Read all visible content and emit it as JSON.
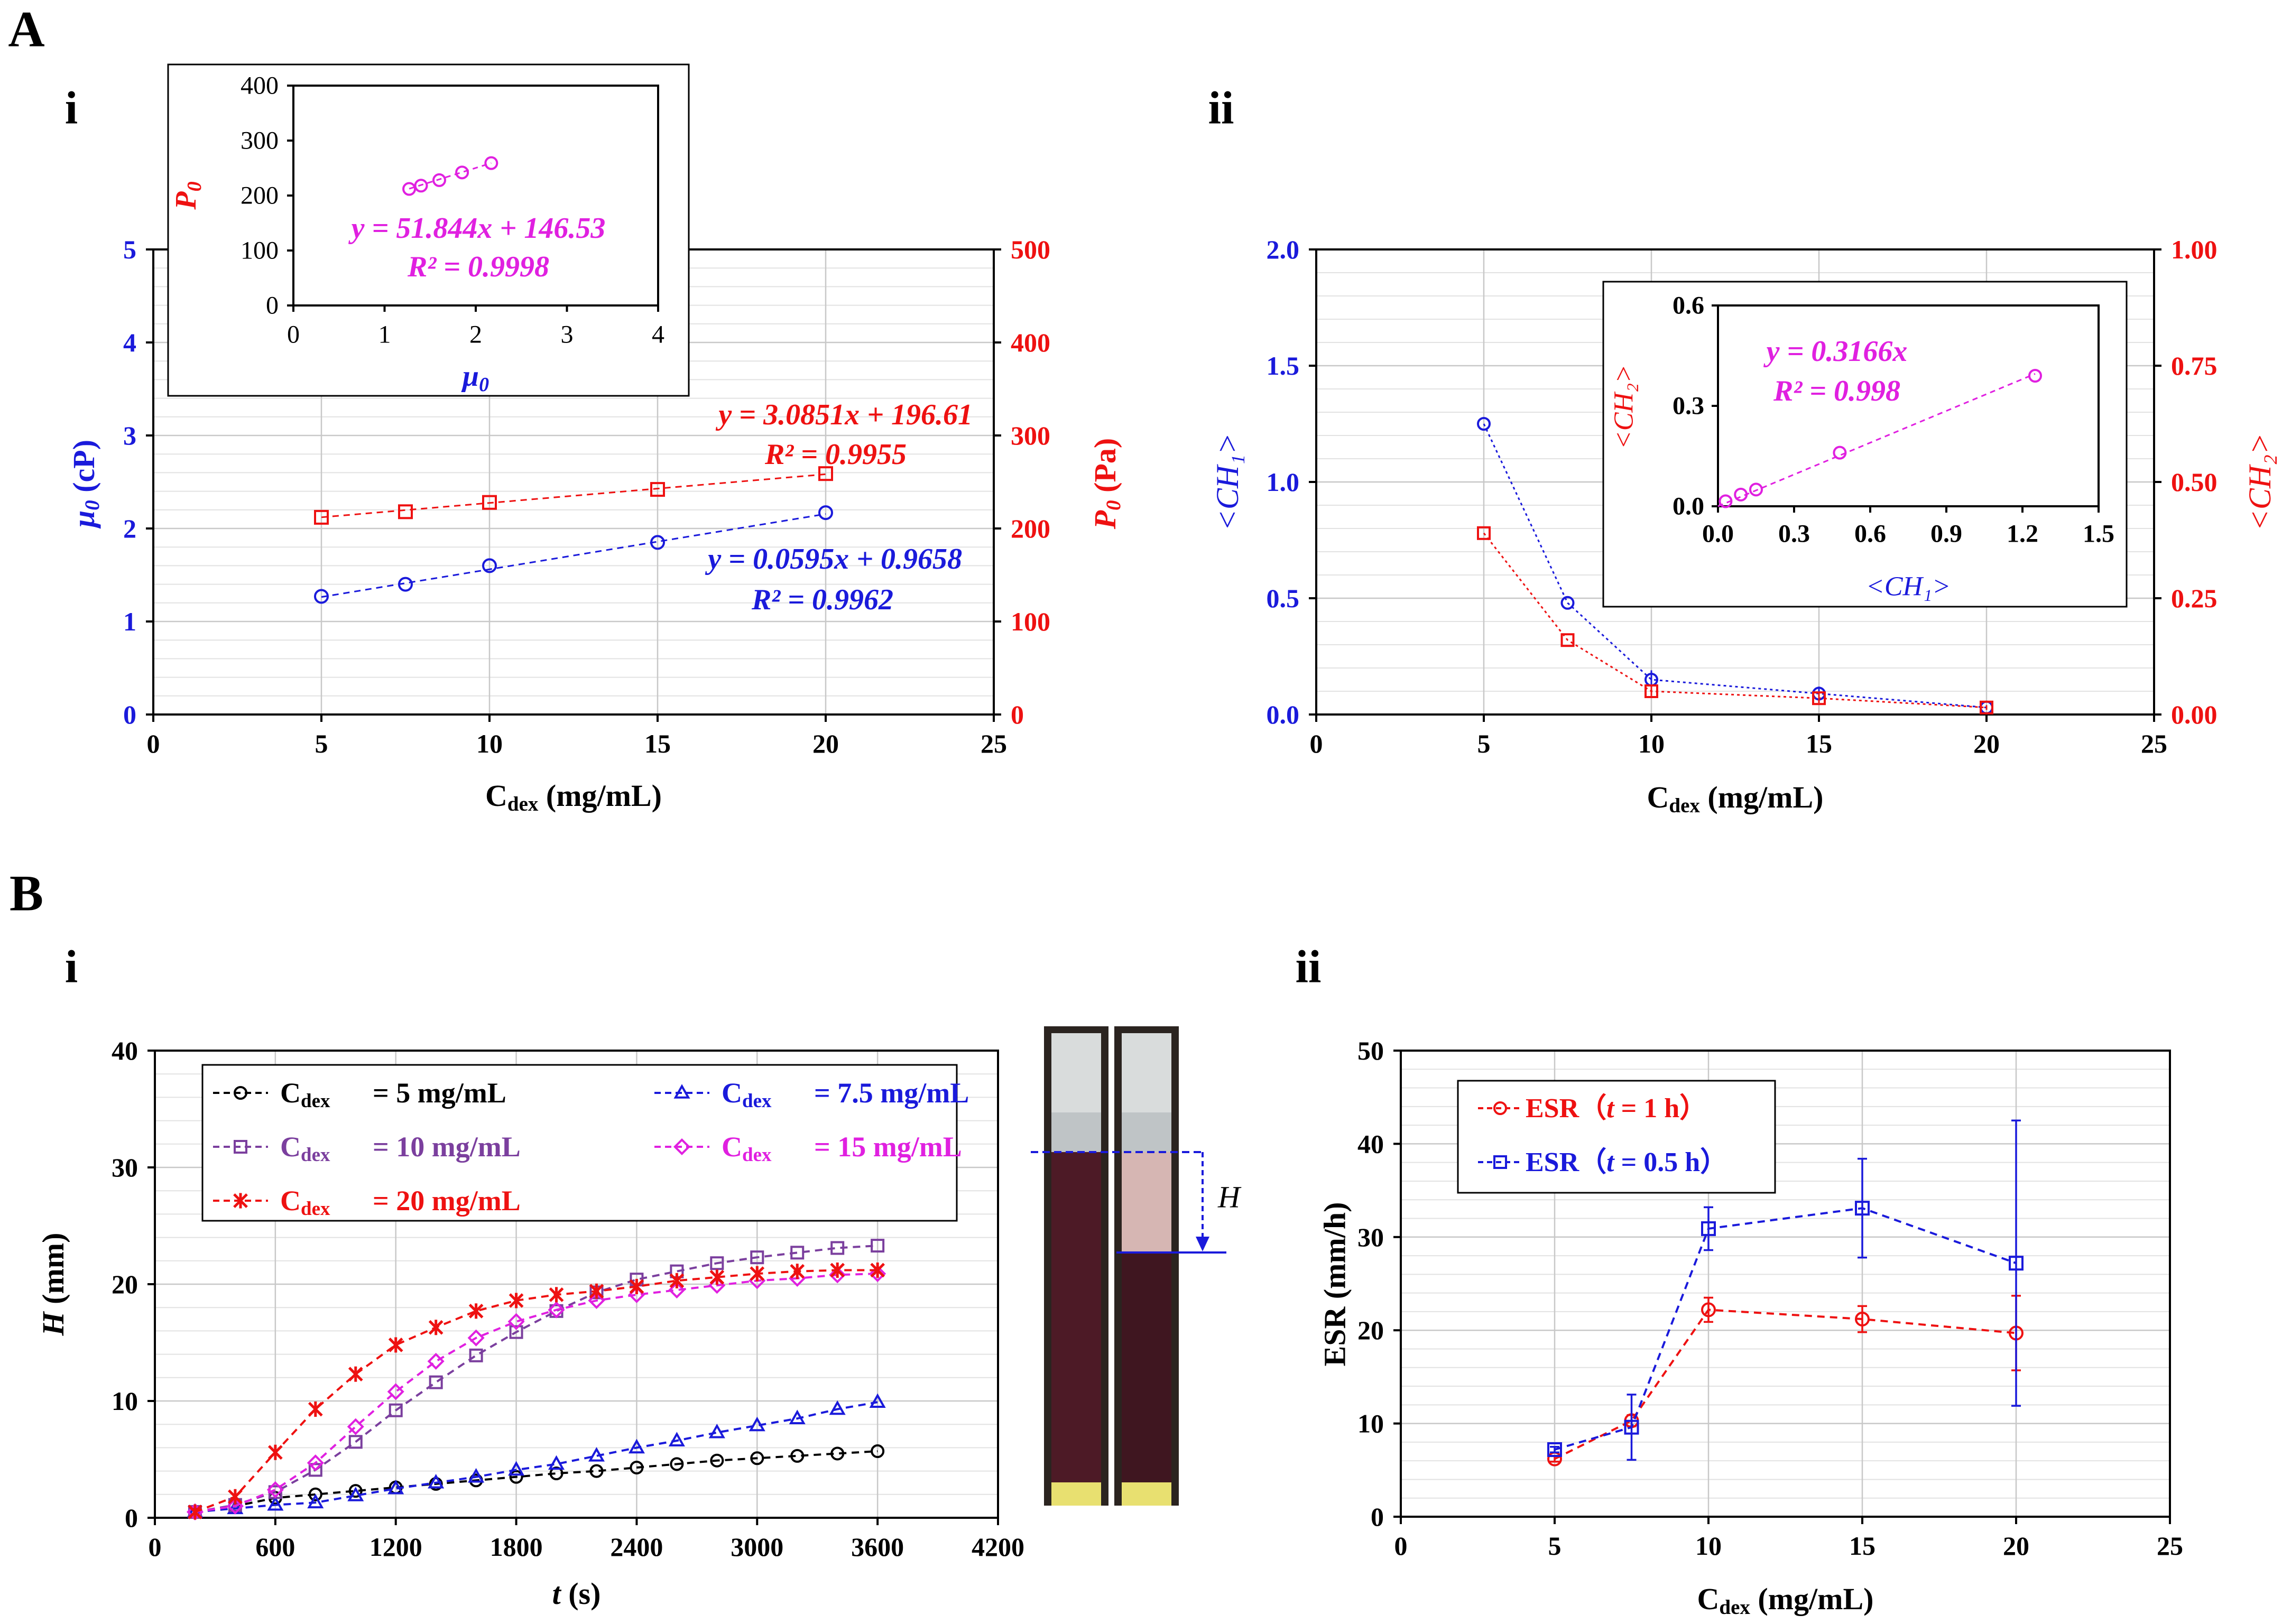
{
  "panel_labels": {
    "A": "A",
    "B": "B",
    "Ai": "i",
    "Aii": "ii",
    "Bi": "i",
    "Bii": "ii"
  },
  "colors": {
    "blue": "#1a1adb",
    "red": "#ee1111",
    "magenta": "#e020e0",
    "purple": "#7b3f9e",
    "black": "#000000",
    "grid": "#c8c8c8"
  },
  "chart_data": [
    {
      "id": "Ai",
      "type": "scatter",
      "xlabel_main": "C",
      "xlabel_sub": "dex",
      "xlabel_unit": " (mg/mL)",
      "ylabel_left_sym": "μ",
      "ylabel_left_sub": "0",
      "ylabel_left_unit": " (cP)",
      "ylabel_right_sym": "P",
      "ylabel_right_sub": "0",
      "ylabel_right_unit": " (Pa)",
      "xlim": [
        0,
        25
      ],
      "xticks": [
        0,
        5,
        10,
        15,
        20,
        25
      ],
      "ylim_left": [
        0,
        5
      ],
      "yticks_left": [
        0,
        1,
        2,
        3,
        4,
        5
      ],
      "ylim_right": [
        0,
        500
      ],
      "yticks_right": [
        0,
        100,
        200,
        300,
        400,
        500
      ],
      "series": [
        {
          "name": "mu0",
          "axis": "left",
          "marker": "circle",
          "color": "#1a1adb",
          "x": [
            5,
            7.5,
            10,
            15,
            20
          ],
          "y": [
            1.27,
            1.4,
            1.6,
            1.85,
            2.17
          ],
          "fit": {
            "slope": 0.0595,
            "intercept": 0.9658
          }
        },
        {
          "name": "P0",
          "axis": "right",
          "marker": "square",
          "color": "#ee1111",
          "x": [
            5,
            7.5,
            10,
            15,
            20
          ],
          "y": [
            212,
            218,
            228,
            242,
            259
          ],
          "fit": {
            "slope": 3.0851,
            "intercept": 196.61
          }
        }
      ],
      "annotations": {
        "P0_eq": "y = 3.0851x + 196.61",
        "P0_r2": "R² = 0.9955",
        "mu0_eq": "y = 0.0595x + 0.9658",
        "mu0_r2": "R² = 0.9962"
      },
      "inset": {
        "type": "scatter",
        "xlabel_sym": "μ",
        "xlabel_sub": "0",
        "ylabel_sym": "P",
        "ylabel_sub": "0",
        "xlim": [
          0,
          4
        ],
        "xticks": [
          0,
          1,
          2,
          3,
          4
        ],
        "ylim": [
          0,
          400
        ],
        "yticks": [
          0,
          100,
          200,
          300,
          400
        ],
        "x": [
          1.27,
          1.4,
          1.6,
          1.85,
          2.17
        ],
        "y": [
          212,
          218,
          228,
          242,
          259
        ],
        "fit": {
          "slope": 51.844,
          "intercept": 146.53
        },
        "eq": "y = 51.844x + 146.53",
        "r2": "R² = 0.9998"
      }
    },
    {
      "id": "Aii",
      "type": "line",
      "xlabel_main": "C",
      "xlabel_sub": "dex",
      "xlabel_unit": " (mg/mL)",
      "ylabel_left": "<CH₁>",
      "ylabel_right": "<CH₂>",
      "xlim": [
        0,
        25
      ],
      "xticks": [
        0,
        5,
        10,
        15,
        20,
        25
      ],
      "ylim_left": [
        0,
        2
      ],
      "yticks_left": [
        "0.0",
        "0.5",
        "1.0",
        "1.5",
        "2.0"
      ],
      "ylim_right": [
        0,
        1
      ],
      "yticks_right": [
        "0.00",
        "0.25",
        "0.50",
        "0.75",
        "1.00"
      ],
      "series": [
        {
          "name": "<CH1>",
          "axis": "left",
          "marker": "circle",
          "color": "#1a1adb",
          "x": [
            5,
            7.5,
            10,
            15,
            20
          ],
          "y": [
            1.25,
            0.48,
            0.15,
            0.09,
            0.03
          ],
          "err": [
            0,
            0,
            0.04,
            0.03,
            0.01
          ]
        },
        {
          "name": "<CH2>",
          "axis": "right",
          "marker": "square",
          "color": "#ee1111",
          "x": [
            5,
            7.5,
            10,
            15,
            20
          ],
          "y": [
            0.39,
            0.16,
            0.05,
            0.035,
            0.015
          ],
          "err": [
            0,
            0,
            0.01,
            0.01,
            0.005
          ]
        }
      ],
      "inset": {
        "type": "scatter",
        "xlabel": "<CH₁>",
        "ylabel": "<CH₂>",
        "xlim": [
          0,
          1.5
        ],
        "xticks": [
          "0.0",
          "0.3",
          "0.6",
          "0.9",
          "1.2",
          "1.5"
        ],
        "ylim": [
          0,
          0.6
        ],
        "yticks": [
          "0.0",
          "0.3",
          "0.6"
        ],
        "x": [
          0.03,
          0.09,
          0.15,
          0.48,
          1.25
        ],
        "y": [
          0.015,
          0.035,
          0.05,
          0.16,
          0.39
        ],
        "fit": {
          "slope": 0.3166,
          "intercept": 0
        },
        "eq": "y = 0.3166x",
        "r2": "R² = 0.998"
      }
    },
    {
      "id": "Bi",
      "type": "line",
      "xlabel_sym": "t",
      "xlabel_unit": " (s)",
      "ylabel_sym": "H",
      "ylabel_unit": " (mm)",
      "xlim": [
        0,
        4200
      ],
      "xticks": [
        0,
        600,
        1200,
        1800,
        2400,
        3000,
        3600,
        4200
      ],
      "ylim": [
        0,
        40
      ],
      "yticks": [
        0,
        10,
        20,
        30,
        40
      ],
      "x": [
        200,
        400,
        600,
        800,
        1000,
        1200,
        1400,
        1600,
        1800,
        2000,
        2200,
        2400,
        2600,
        2800,
        3000,
        3200,
        3400,
        3600
      ],
      "series": [
        {
          "label": "= 5 mg/mL",
          "marker": "circle",
          "color": "#000000",
          "values": [
            0.5,
            1.0,
            1.7,
            2.0,
            2.3,
            2.6,
            2.9,
            3.2,
            3.5,
            3.8,
            4.0,
            4.3,
            4.6,
            4.9,
            5.1,
            5.3,
            5.5,
            5.7
          ]
        },
        {
          "label": "= 7.5 mg/mL",
          "marker": "triangle",
          "color": "#1a1adb",
          "values": [
            0.5,
            0.8,
            1.1,
            1.3,
            1.9,
            2.5,
            3.0,
            3.5,
            4.1,
            4.6,
            5.3,
            6.0,
            6.6,
            7.3,
            7.9,
            8.5,
            9.3,
            9.9
          ]
        },
        {
          "label": "= 10 mg/mL",
          "marker": "square",
          "color": "#7b3f9e",
          "values": [
            0.5,
            1.1,
            2.2,
            4.1,
            6.5,
            9.2,
            11.6,
            13.9,
            15.9,
            17.7,
            19.3,
            20.4,
            21.1,
            21.8,
            22.3,
            22.7,
            23.1,
            23.3
          ]
        },
        {
          "label": "= 15 mg/mL",
          "marker": "diamond",
          "color": "#e020e0",
          "values": [
            0.5,
            1.0,
            2.4,
            4.7,
            7.8,
            10.8,
            13.4,
            15.4,
            16.8,
            17.8,
            18.6,
            19.1,
            19.5,
            19.9,
            20.3,
            20.5,
            20.8,
            20.9
          ]
        },
        {
          "label": "= 20 mg/mL",
          "marker": "star",
          "color": "#ee1111",
          "values": [
            0.5,
            1.8,
            5.6,
            9.3,
            12.3,
            14.8,
            16.3,
            17.7,
            18.6,
            19.1,
            19.4,
            19.8,
            20.3,
            20.6,
            20.9,
            21.1,
            21.2,
            21.2
          ]
        }
      ],
      "legend_prefix_main": "C",
      "legend_prefix_sub": "dex",
      "photo_label": "H"
    },
    {
      "id": "Bii",
      "type": "line",
      "xlabel_main": "C",
      "xlabel_sub": "dex",
      "xlabel_unit": " (mg/mL)",
      "ylabel": "ESR (mm/h)",
      "xlim": [
        0,
        25
      ],
      "xticks": [
        0,
        5,
        10,
        15,
        20,
        25
      ],
      "ylim": [
        0,
        50
      ],
      "yticks": [
        0,
        10,
        20,
        30,
        40,
        50
      ],
      "series": [
        {
          "label_a": "ESR（",
          "label_t": "t",
          "label_b": " = 1 h）",
          "marker": "circle",
          "color": "#ee1111",
          "x": [
            5,
            7.5,
            10,
            15,
            20
          ],
          "y": [
            6.2,
            10.3,
            22.2,
            21.2,
            19.7
          ],
          "err": [
            0.3,
            0.6,
            1.3,
            1.4,
            4.0
          ]
        },
        {
          "label_a": "ESR（",
          "label_t": "t",
          "label_b": " = 0.5 h）",
          "marker": "square",
          "color": "#1a1adb",
          "x": [
            5,
            7.5,
            10,
            15,
            20
          ],
          "y": [
            7.2,
            9.6,
            30.9,
            33.1,
            27.2
          ],
          "err": [
            0.3,
            3.5,
            2.3,
            5.3,
            15.3
          ]
        }
      ]
    }
  ]
}
